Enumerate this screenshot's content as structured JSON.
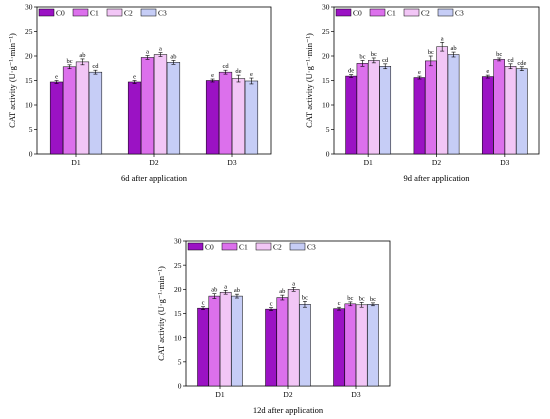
{
  "colors": {
    "C0": "#9b12c4",
    "C1": "#dc70ec",
    "C2": "#f2c6f6",
    "C3": "#c6cdf6"
  },
  "chart_data": [
    {
      "type": "bar",
      "title": "6d after application",
      "ylabel": "CAT activity (U·g⁻¹·min⁻¹)",
      "ylim": [
        0,
        30
      ],
      "yticks": [
        0,
        5,
        10,
        15,
        20,
        25,
        30
      ],
      "ytick_labels": [
        "0",
        "5",
        "10",
        "15",
        "20",
        "25",
        "30"
      ],
      "categories": [
        "D1",
        "D2",
        "D3"
      ],
      "legend": [
        "C0",
        "C1",
        "C2",
        "C3"
      ],
      "series": [
        {
          "name": "C0",
          "values": [
            14.7,
            14.7,
            15.0
          ],
          "errors": [
            0.3,
            0.3,
            0.3
          ],
          "labels": [
            "e",
            "e",
            "e"
          ]
        },
        {
          "name": "C1",
          "values": [
            17.8,
            19.7,
            16.7
          ],
          "errors": [
            0.4,
            0.4,
            0.4
          ],
          "labels": [
            "bc",
            "a",
            "cd"
          ]
        },
        {
          "name": "C2",
          "values": [
            18.8,
            20.3,
            15.4
          ],
          "errors": [
            0.6,
            0.4,
            0.7
          ],
          "labels": [
            "ab",
            "a",
            "de"
          ]
        },
        {
          "name": "C3",
          "values": [
            16.7,
            18.7,
            14.9
          ],
          "errors": [
            0.4,
            0.4,
            0.6
          ],
          "labels": [
            "cd",
            "ab",
            "e"
          ]
        }
      ]
    },
    {
      "type": "bar",
      "title": "9d after application",
      "ylabel": "CAT activity (U·g⁻¹·min⁻¹)",
      "ylim": [
        0,
        30
      ],
      "yticks": [
        0,
        5,
        10,
        15,
        20,
        25,
        30
      ],
      "ytick_labels": [
        "0",
        "5",
        "10",
        "15",
        "20",
        "25",
        "30"
      ],
      "categories": [
        "D1",
        "D2",
        "D3"
      ],
      "legend": [
        "C0",
        "C1",
        "C2",
        "C3"
      ],
      "series": [
        {
          "name": "C0",
          "values": [
            15.9,
            15.6,
            15.8
          ],
          "errors": [
            0.3,
            0.3,
            0.3
          ],
          "labels": [
            "de",
            "e",
            "e"
          ]
        },
        {
          "name": "C1",
          "values": [
            18.5,
            19.0,
            19.3
          ],
          "errors": [
            0.6,
            1.0,
            0.3
          ],
          "labels": [
            "bc",
            "bc",
            "bc"
          ]
        },
        {
          "name": "C2",
          "values": [
            19.1,
            21.9,
            17.9
          ],
          "errors": [
            0.5,
            0.9,
            0.5
          ],
          "labels": [
            "bc",
            "a",
            "cd"
          ]
        },
        {
          "name": "C3",
          "values": [
            17.9,
            20.3,
            17.4
          ],
          "errors": [
            0.5,
            0.5,
            0.4
          ],
          "labels": [
            "cd",
            "ab",
            "cde"
          ]
        }
      ]
    },
    {
      "type": "bar",
      "title": "12d after application",
      "ylabel": "CAT activity (U·g⁻¹·min⁻¹)",
      "ylim": [
        0,
        30
      ],
      "yticks": [
        0,
        5,
        10,
        15,
        20,
        25,
        30
      ],
      "ytick_labels": [
        "0",
        "5",
        "10",
        "15",
        "20",
        "25",
        "30"
      ],
      "categories": [
        "D1",
        "D2",
        "D3"
      ],
      "legend": [
        "C0",
        "C1",
        "C2",
        "C3"
      ],
      "series": [
        {
          "name": "C0",
          "values": [
            16.1,
            15.9,
            16.0
          ],
          "errors": [
            0.3,
            0.3,
            0.3
          ],
          "labels": [
            "c",
            "c",
            "c"
          ]
        },
        {
          "name": "C1",
          "values": [
            18.6,
            18.3,
            17.0
          ],
          "errors": [
            0.5,
            0.5,
            0.4
          ],
          "labels": [
            "ab",
            "ab",
            "bc"
          ]
        },
        {
          "name": "C2",
          "values": [
            19.4,
            20.0,
            16.8
          ],
          "errors": [
            0.4,
            0.4,
            0.5
          ],
          "labels": [
            "a",
            "a",
            "bc"
          ]
        },
        {
          "name": "C3",
          "values": [
            18.6,
            16.9,
            16.9
          ],
          "errors": [
            0.4,
            0.6,
            0.3
          ],
          "labels": [
            "ab",
            "bc",
            "bc"
          ]
        }
      ]
    }
  ]
}
